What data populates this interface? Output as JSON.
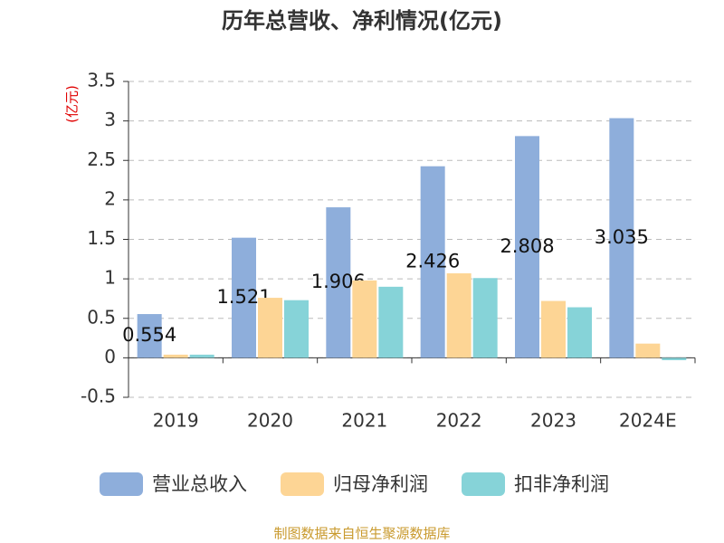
{
  "chart_data": {
    "type": "bar",
    "title": "历年总营收、净利情况(亿元)",
    "y_unit": "(亿元)",
    "categories": [
      "2019",
      "2020",
      "2021",
      "2022",
      "2023",
      "2024E"
    ],
    "series": [
      {
        "name": "营业总收入",
        "color": "#8eaedb",
        "values": [
          0.554,
          1.521,
          1.906,
          2.426,
          2.808,
          3.035
        ]
      },
      {
        "name": "归母净利润",
        "color": "#fdd595",
        "values": [
          0.04,
          0.76,
          0.98,
          1.07,
          0.72,
          0.18
        ]
      },
      {
        "name": "扣非净利润",
        "color": "#86d3d8",
        "values": [
          0.04,
          0.73,
          0.9,
          1.01,
          0.64,
          -0.03
        ]
      }
    ],
    "ylim": [
      -0.5,
      3.5
    ],
    "yticks": [
      -0.5,
      0,
      0.5,
      1,
      1.5,
      2,
      2.5,
      3,
      3.5
    ],
    "grid": true,
    "source": "制图数据来自恒生聚源数据库"
  }
}
